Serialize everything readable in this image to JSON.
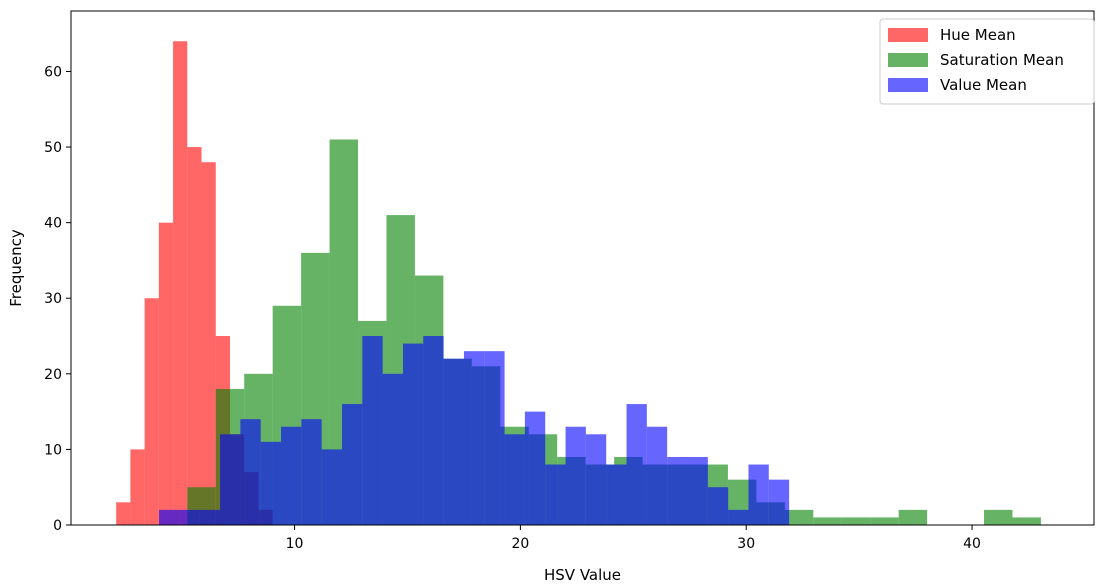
{
  "chart_data": {
    "type": "histogram",
    "xlabel": "HSV Value",
    "ylabel": "Frequency",
    "xlim": [
      0.1,
      45.4
    ],
    "ylim": [
      0,
      68
    ],
    "xticks": [
      10,
      20,
      30,
      40
    ],
    "yticks": [
      0,
      10,
      20,
      30,
      40,
      50,
      60
    ],
    "grid": false,
    "legend_position": "top-right",
    "series": [
      {
        "name": "Hue Mean",
        "color": "#ff0000",
        "alpha": 0.6,
        "bin_width": 0.63,
        "bins": [
          {
            "x": 2.1,
            "y": 3
          },
          {
            "x": 2.73,
            "y": 10
          },
          {
            "x": 3.36,
            "y": 30
          },
          {
            "x": 3.99,
            "y": 40
          },
          {
            "x": 4.62,
            "y": 64
          },
          {
            "x": 5.25,
            "y": 50
          },
          {
            "x": 5.88,
            "y": 48
          },
          {
            "x": 6.51,
            "y": 25
          },
          {
            "x": 7.14,
            "y": 12
          },
          {
            "x": 7.77,
            "y": 7
          },
          {
            "x": 8.4,
            "y": 2
          }
        ]
      },
      {
        "name": "Saturation Mean",
        "color": "#008000",
        "alpha": 0.6,
        "bin_width": 1.26,
        "bins": [
          {
            "x": 5.25,
            "y": 5
          },
          {
            "x": 6.51,
            "y": 18
          },
          {
            "x": 7.77,
            "y": 20
          },
          {
            "x": 9.03,
            "y": 29
          },
          {
            "x": 10.29,
            "y": 36
          },
          {
            "x": 11.55,
            "y": 51
          },
          {
            "x": 12.81,
            "y": 27
          },
          {
            "x": 14.07,
            "y": 41
          },
          {
            "x": 15.33,
            "y": 33
          },
          {
            "x": 16.59,
            "y": 22
          },
          {
            "x": 17.85,
            "y": 21
          },
          {
            "x": 19.11,
            "y": 13
          },
          {
            "x": 20.37,
            "y": 12
          },
          {
            "x": 21.63,
            "y": 9
          },
          {
            "x": 22.89,
            "y": 8
          },
          {
            "x": 24.15,
            "y": 9
          },
          {
            "x": 25.41,
            "y": 8
          },
          {
            "x": 26.67,
            "y": 8
          },
          {
            "x": 27.93,
            "y": 8
          },
          {
            "x": 29.19,
            "y": 6
          },
          {
            "x": 30.45,
            "y": 3
          },
          {
            "x": 31.71,
            "y": 2
          },
          {
            "x": 32.97,
            "y": 1
          },
          {
            "x": 34.23,
            "y": 1
          },
          {
            "x": 35.49,
            "y": 1
          },
          {
            "x": 36.75,
            "y": 2
          },
          {
            "x": 38.01,
            "y": 0
          },
          {
            "x": 39.27,
            "y": 0
          },
          {
            "x": 40.53,
            "y": 2
          },
          {
            "x": 41.79,
            "y": 1
          },
          {
            "x": 43.05,
            "y": 0
          }
        ]
      },
      {
        "name": "Value Mean",
        "color": "#0000ff",
        "alpha": 0.6,
        "bin_width": 0.9,
        "bins": [
          {
            "x": 4.0,
            "y": 2
          },
          {
            "x": 4.9,
            "y": 2
          },
          {
            "x": 5.8,
            "y": 2
          },
          {
            "x": 6.7,
            "y": 12
          },
          {
            "x": 7.6,
            "y": 14
          },
          {
            "x": 8.5,
            "y": 11
          },
          {
            "x": 9.4,
            "y": 13
          },
          {
            "x": 10.3,
            "y": 14
          },
          {
            "x": 11.2,
            "y": 10
          },
          {
            "x": 12.1,
            "y": 16
          },
          {
            "x": 13.0,
            "y": 25
          },
          {
            "x": 13.9,
            "y": 20
          },
          {
            "x": 14.8,
            "y": 24
          },
          {
            "x": 15.7,
            "y": 25
          },
          {
            "x": 16.6,
            "y": 22
          },
          {
            "x": 17.5,
            "y": 23
          },
          {
            "x": 18.4,
            "y": 23
          },
          {
            "x": 19.3,
            "y": 12
          },
          {
            "x": 20.2,
            "y": 15
          },
          {
            "x": 21.1,
            "y": 8
          },
          {
            "x": 22.0,
            "y": 13
          },
          {
            "x": 22.9,
            "y": 12
          },
          {
            "x": 23.8,
            "y": 8
          },
          {
            "x": 24.7,
            "y": 16
          },
          {
            "x": 25.6,
            "y": 13
          },
          {
            "x": 26.5,
            "y": 9
          },
          {
            "x": 27.4,
            "y": 9
          },
          {
            "x": 28.3,
            "y": 5
          },
          {
            "x": 29.2,
            "y": 2
          },
          {
            "x": 30.1,
            "y": 8
          },
          {
            "x": 31.0,
            "y": 6
          }
        ]
      }
    ]
  }
}
